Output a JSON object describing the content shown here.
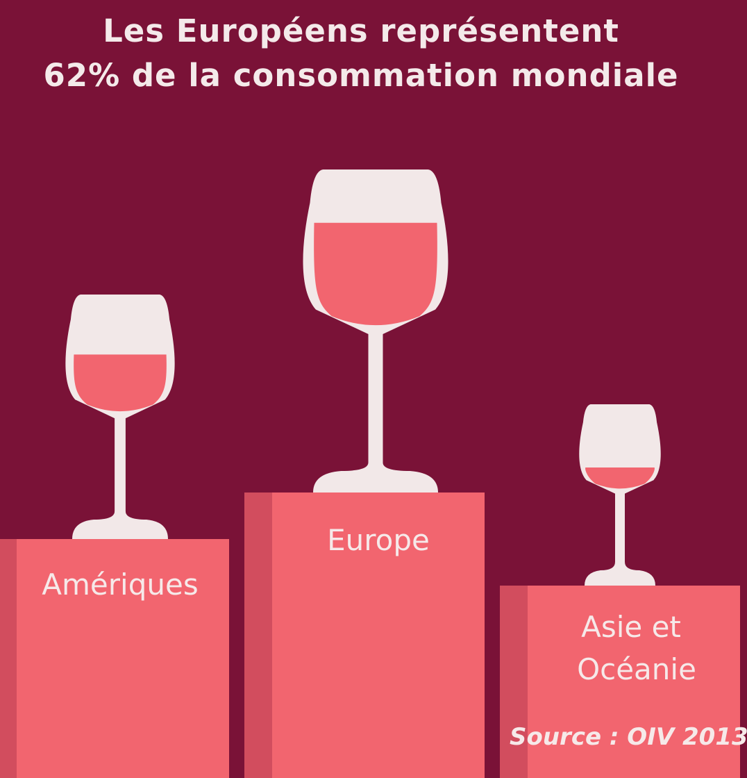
{
  "colors": {
    "background": "#7a1237",
    "podium": "#f2656f",
    "podium_edge": "#d24d5e",
    "glass": "#f2e8e8",
    "wine": "#f2656f",
    "text": "#f6e9e9"
  },
  "title": {
    "line1": "Les Européens représentent",
    "line2": "62% de la consommation mondiale"
  },
  "chart_data": {
    "type": "bar",
    "title": "Les Européens représentent 62% de la consommation mondiale",
    "categories": [
      "Amériques",
      "Europe",
      "Asie et Océanie"
    ],
    "category_lines": [
      [
        "Amériques"
      ],
      [
        "Europe"
      ],
      [
        "Asie et",
        "Océanie"
      ]
    ],
    "values": [
      null,
      62,
      null
    ],
    "value_unit": "%",
    "glass_icons": [
      "wine-glass-icon",
      "wine-glass-icon",
      "wine-glass-icon"
    ],
    "source": "Source : OIV 2013"
  }
}
